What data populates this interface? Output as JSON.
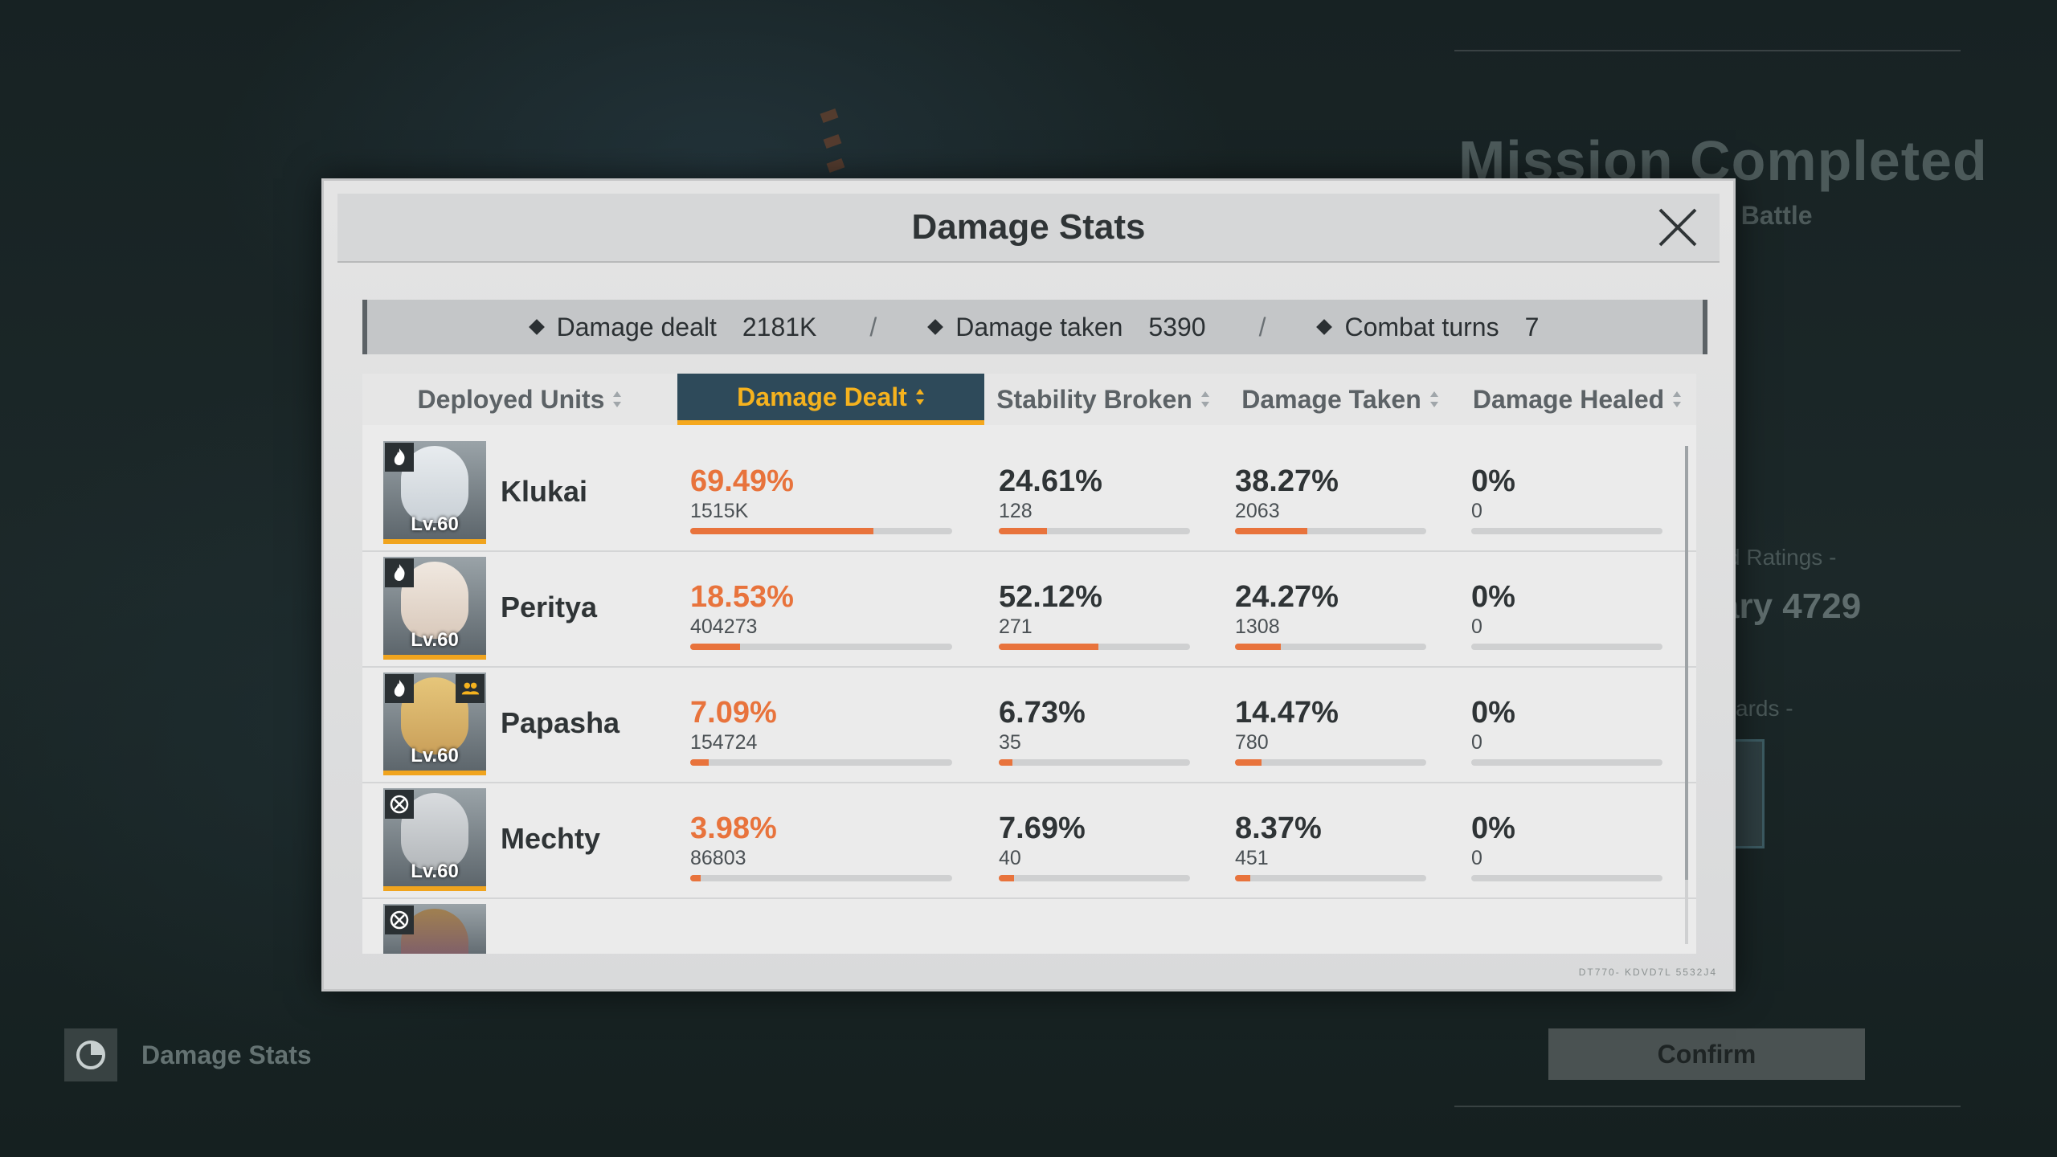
{
  "background": {
    "mission_title": "Mission Completed",
    "mission_sub": "e Battle",
    "ratings_label": "d Ratings -",
    "score": "ary 4729",
    "rewards_label": "ards -"
  },
  "bottom": {
    "damage_stats_label": "Damage Stats",
    "confirm_label": "Confirm"
  },
  "modal": {
    "title": "Damage Stats",
    "deco_footer": "DT770- KDVD7L 5532J4",
    "summary": {
      "damage_dealt_label": "Damage dealt",
      "damage_dealt_value": "2181K",
      "damage_taken_label": "Damage taken",
      "damage_taken_value": "5390",
      "combat_turns_label": "Combat turns",
      "combat_turns_value": "7",
      "separator": "/"
    },
    "columns": [
      {
        "label": "Deployed Units"
      },
      {
        "label": "Damage Dealt"
      },
      {
        "label": "Stability Broken"
      },
      {
        "label": "Damage Taken"
      },
      {
        "label": "Damage Healed"
      }
    ],
    "active_column": "Damage Dealt",
    "rows": [
      {
        "name": "Klukai",
        "level": "Lv.60",
        "class_icon": "flame-icon",
        "group_icon": "",
        "damage_dealt": {
          "pct": "69.49%",
          "raw": "1515K",
          "fill": 0.7
        },
        "stability_broken": {
          "pct": "24.61%",
          "raw": "128",
          "fill": 0.25
        },
        "damage_taken": {
          "pct": "38.27%",
          "raw": "2063",
          "fill": 0.38
        },
        "damage_healed": {
          "pct": "0%",
          "raw": "0",
          "fill": 0
        }
      },
      {
        "name": "Peritya",
        "level": "Lv.60",
        "class_icon": "flame-icon",
        "group_icon": "",
        "damage_dealt": {
          "pct": "18.53%",
          "raw": "404273",
          "fill": 0.19
        },
        "stability_broken": {
          "pct": "52.12%",
          "raw": "271",
          "fill": 0.52
        },
        "damage_taken": {
          "pct": "24.27%",
          "raw": "1308",
          "fill": 0.24
        },
        "damage_healed": {
          "pct": "0%",
          "raw": "0",
          "fill": 0
        }
      },
      {
        "name": "Papasha",
        "level": "Lv.60",
        "class_icon": "flame-icon",
        "group_icon": "support-group-icon",
        "damage_dealt": {
          "pct": "7.09%",
          "raw": "154724",
          "fill": 0.07
        },
        "stability_broken": {
          "pct": "6.73%",
          "raw": "35",
          "fill": 0.07
        },
        "damage_taken": {
          "pct": "14.47%",
          "raw": "780",
          "fill": 0.14
        },
        "damage_healed": {
          "pct": "0%",
          "raw": "0",
          "fill": 0
        }
      },
      {
        "name": "Mechty",
        "level": "Lv.60",
        "class_icon": "cross-circle-icon",
        "group_icon": "",
        "damage_dealt": {
          "pct": "3.98%",
          "raw": "86803",
          "fill": 0.04
        },
        "stability_broken": {
          "pct": "7.69%",
          "raw": "40",
          "fill": 0.08
        },
        "damage_taken": {
          "pct": "8.37%",
          "raw": "451",
          "fill": 0.08
        },
        "damage_healed": {
          "pct": "0%",
          "raw": "0",
          "fill": 0
        }
      }
    ],
    "partial_row_class_icon": "cross-circle-icon"
  },
  "colors": {
    "accent_orange": "#e8733c",
    "active_tab_bg": "#2e4a5a",
    "active_tab_text": "#f5b21e"
  }
}
